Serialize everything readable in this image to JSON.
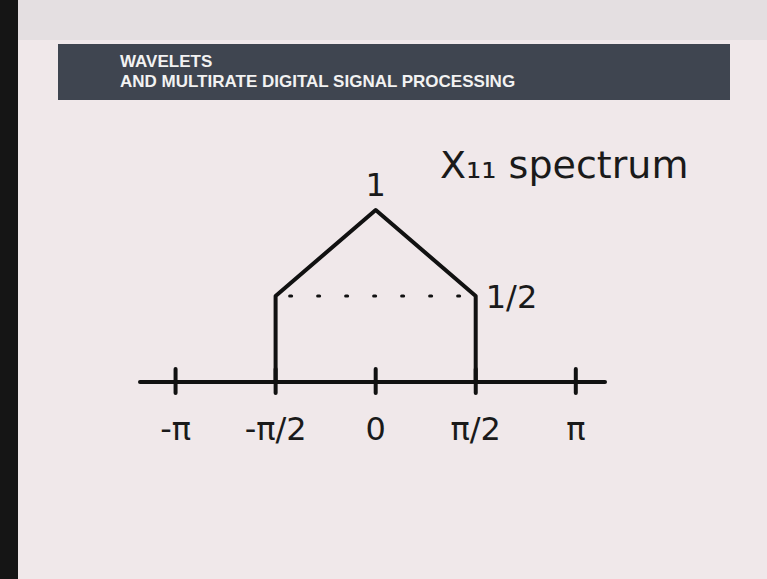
{
  "header": {
    "lines": [
      "WAVELETS",
      "AND MULTIRATE DIGITAL SIGNAL PROCESSING"
    ]
  },
  "chart_data": {
    "type": "line",
    "title": "X₁₁ spectrum",
    "x": [
      -1.5708,
      -1.5708,
      0,
      1.5708,
      1.5708
    ],
    "values": [
      0,
      0.5,
      1,
      0.5,
      0
    ],
    "color": "#111111",
    "xlim": [
      -3.7,
      3.6
    ],
    "xticks": [
      {
        "value": -3.1416,
        "label": "-π"
      },
      {
        "value": -1.5708,
        "label": "-π/2"
      },
      0,
      {
        "value": 1.5708,
        "label": "π/2"
      },
      {
        "value": 3.1416,
        "label": "π"
      }
    ],
    "ylim": [
      0,
      1.3
    ],
    "tick_labels": "x",
    "annotations": [
      {
        "text": "1",
        "x": 0,
        "y": 1
      },
      {
        "text": "1/2",
        "x": 1.5708,
        "y": 0.5
      }
    ]
  }
}
